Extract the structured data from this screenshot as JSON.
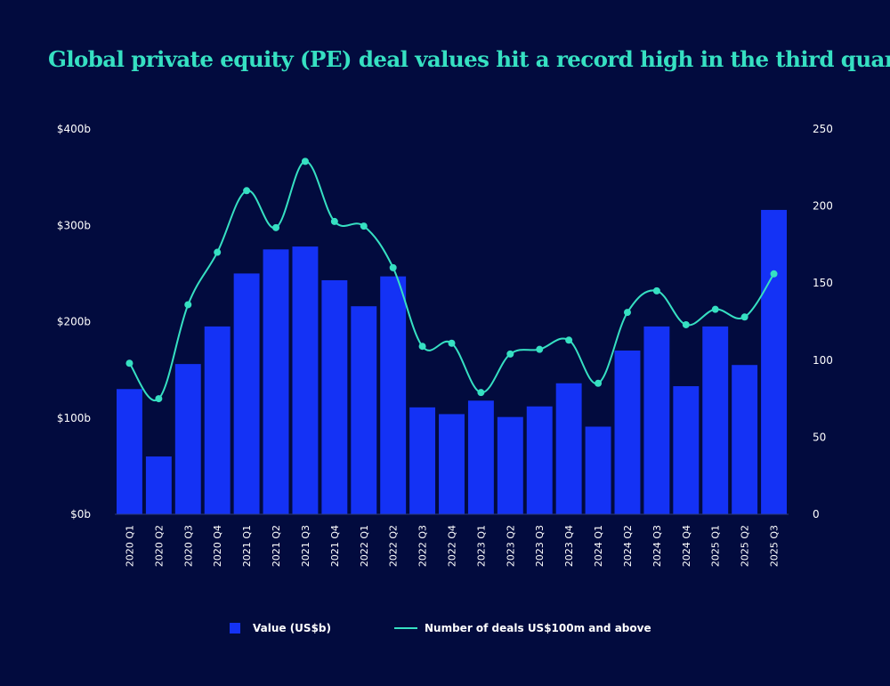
{
  "title": "Global private equity (PE) deal values hit a record high in the third quarter",
  "colors": {
    "background": "#020b3e",
    "bar": "#1432f5",
    "line": "#36e0c2",
    "text": "#ffffff",
    "title": "#36e0c2"
  },
  "legend": {
    "bar_label": "Value (US$b)",
    "line_label": "Number of deals US$100m and above"
  },
  "chart_data": {
    "type": "bar",
    "title": "Global private equity (PE) deal values hit a record high in the third quarter",
    "categories": [
      "2020 Q1",
      "2020 Q2",
      "2020 Q3",
      "2020 Q4",
      "2021 Q1",
      "2021 Q2",
      "2021 Q3",
      "2021 Q4",
      "2022 Q1",
      "2022 Q2",
      "2022 Q3",
      "2022 Q4",
      "2023 Q1",
      "2023 Q2",
      "2023 Q3",
      "2023 Q4",
      "2024 Q1",
      "2024 Q2",
      "2024 Q3",
      "2024 Q4",
      "2025 Q1",
      "2025 Q2",
      "2025 Q3"
    ],
    "series": [
      {
        "name": "Value (US$b)",
        "type": "bar",
        "axis": "left",
        "values": [
          130,
          60,
          156,
          195,
          250,
          275,
          278,
          243,
          216,
          247,
          111,
          104,
          118,
          101,
          112,
          136,
          91,
          170,
          195,
          133,
          195,
          155,
          316
        ]
      },
      {
        "name": "Number of deals US$100m and above",
        "type": "line",
        "axis": "right",
        "values": [
          98,
          75,
          136,
          170,
          210,
          186,
          229,
          190,
          187,
          160,
          109,
          111,
          79,
          104,
          107,
          113,
          85,
          131,
          145,
          123,
          133,
          128,
          156
        ]
      }
    ],
    "y_left": {
      "min": 0,
      "max": 400,
      "ticks": [
        0,
        100,
        200,
        300,
        400
      ],
      "tick_labels": [
        "$0b",
        "$100b",
        "$200b",
        "$300b",
        "$400b"
      ]
    },
    "y_right": {
      "min": 0,
      "max": 250,
      "ticks": [
        0,
        50,
        100,
        150,
        200,
        250
      ],
      "tick_labels": [
        "0",
        "50",
        "100",
        "150",
        "200",
        "250"
      ]
    },
    "xlabel": "",
    "ylabel": "",
    "grid": false,
    "legend_position": "bottom"
  }
}
